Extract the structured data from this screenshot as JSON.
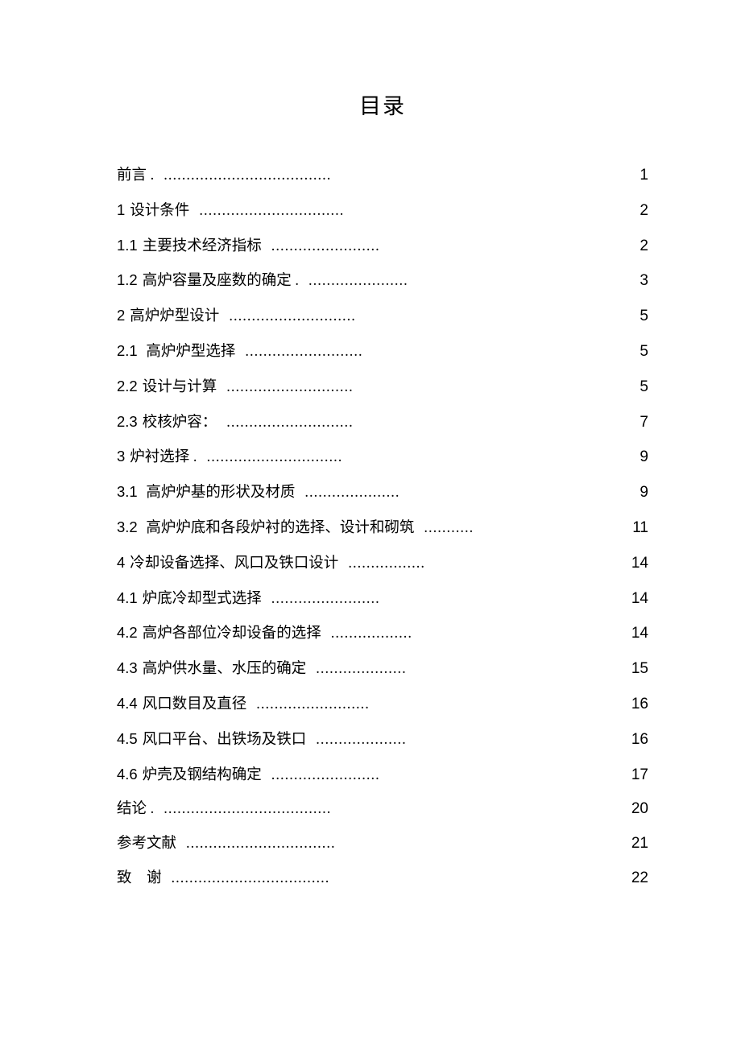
{
  "title": "目录",
  "entries": [
    {
      "num": "",
      "label": "前言 .",
      "dots": 37,
      "page": "1"
    },
    {
      "num": "1",
      "label": "设计条件",
      "dots": 32,
      "page": "2"
    },
    {
      "num": "1.1",
      "label": "主要技术经济指标",
      "dots": 24,
      "page": "2"
    },
    {
      "num": "1.2",
      "label": "高炉容量及座数的确定",
      "extra": " .",
      "dots": 22,
      "page": "3"
    },
    {
      "num": "2",
      "label": "高炉炉型设计",
      "dots": 28,
      "page": "5"
    },
    {
      "num": "2.1",
      "label": " 高炉炉型选择",
      "dots": 26,
      "page": "5"
    },
    {
      "num": "2.2",
      "label": "设计与计算",
      "dots": 28,
      "page": "5"
    },
    {
      "num": "2.3",
      "label": "校核炉容：",
      "dots": 28,
      "page": "7"
    },
    {
      "num": "3",
      "label": "炉衬选择 .",
      "dots": 30,
      "page": "9"
    },
    {
      "num": "3.1",
      "label": " 高炉炉基的形状及材质",
      "dots": 21,
      "page": "9"
    },
    {
      "num": "3.2",
      "label": " 高炉炉底和各段炉衬的选择、设计和砌筑",
      "dots": 11,
      "page": "11"
    },
    {
      "num": "4",
      "label": "冷却设备选择、风口及铁口设计",
      "dots": 17,
      "page": "14"
    },
    {
      "num": "4.1",
      "label": "炉底冷却型式选择",
      "dots": 24,
      "page": "14"
    },
    {
      "num": "4.2",
      "label": "高炉各部位冷却设备的选择",
      "dots": 18,
      "page": "14"
    },
    {
      "num": "4.3",
      "label": "高炉供水量、水压的确定",
      "dots": 20,
      "page": "15"
    },
    {
      "num": "4.4",
      "label": "风口数目及直径",
      "dots": 25,
      "page": "16"
    },
    {
      "num": "4.5",
      "label": "风口平台、出铁场及铁口",
      "dots": 20,
      "page": "16"
    },
    {
      "num": "4.6",
      "label": "炉壳及钢结构确定",
      "dots": 24,
      "page": "17"
    },
    {
      "num": "",
      "label": "结论 .",
      "dots": 37,
      "page": "20"
    },
    {
      "num": "",
      "label": "参考文献",
      "dots": 33,
      "page": "21"
    },
    {
      "num": "",
      "label": "致　谢",
      "dots": 35,
      "page": "22"
    }
  ],
  "style": {
    "background_color": "#ffffff",
    "text_color": "#000000",
    "title_fontsize": 27,
    "entry_fontsize": 18.5,
    "row_spacing": 20,
    "font_family_cjk": "SimSun",
    "font_family_num": "Arial"
  }
}
